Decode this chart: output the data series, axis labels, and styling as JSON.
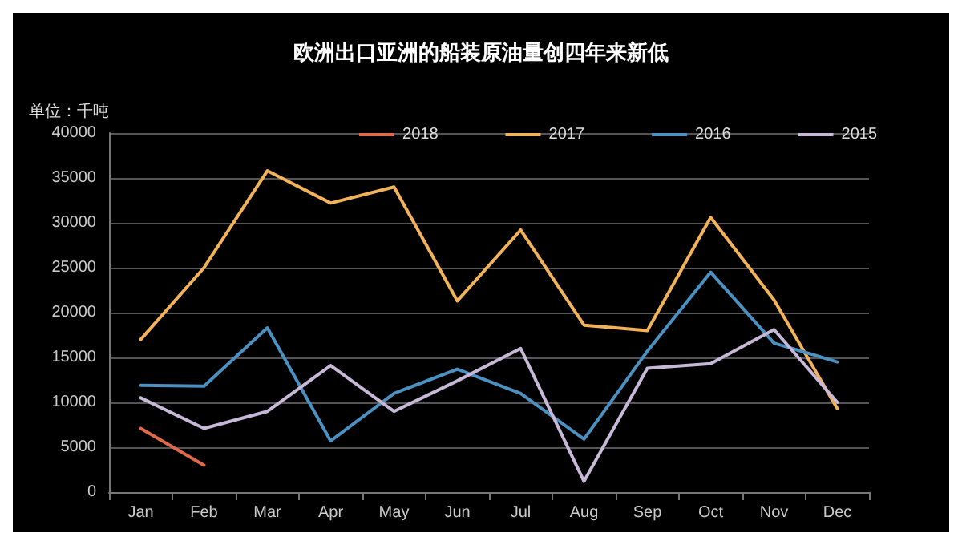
{
  "chart_data": {
    "type": "line",
    "title": "欧洲出口亚洲的船装原油量创四年来新低",
    "ylabel": "单位：千吨",
    "categories": [
      "Jan",
      "Feb",
      "Mar",
      "Apr",
      "May",
      "Jun",
      "Jul",
      "Aug",
      "Sep",
      "Oct",
      "Nov",
      "Dec"
    ],
    "series": [
      {
        "name": "2018",
        "color": "#e0694a",
        "values": [
          7100,
          3000,
          null,
          null,
          null,
          null,
          null,
          null,
          null,
          null,
          null,
          null
        ]
      },
      {
        "name": "2017",
        "color": "#f2b25a",
        "values": [
          17000,
          25000,
          35800,
          32200,
          34000,
          21300,
          29200,
          18600,
          18000,
          30600,
          21400,
          9300
        ]
      },
      {
        "name": "2016",
        "color": "#4a90c0",
        "values": [
          11900,
          11800,
          18300,
          5700,
          11000,
          13700,
          11000,
          5900,
          15700,
          24500,
          16600,
          14500
        ]
      },
      {
        "name": "2015",
        "color": "#c8b8d8",
        "values": [
          10500,
          7100,
          9000,
          14100,
          9000,
          12400,
          16000,
          1200,
          13800,
          14300,
          18100,
          10000
        ]
      }
    ],
    "ylim": [
      0,
      40000
    ],
    "yticks": [
      0,
      5000,
      10000,
      15000,
      20000,
      25000,
      30000,
      35000,
      40000
    ],
    "grid": "y",
    "legend": "top right",
    "marker": "none",
    "line_style": "solid"
  }
}
